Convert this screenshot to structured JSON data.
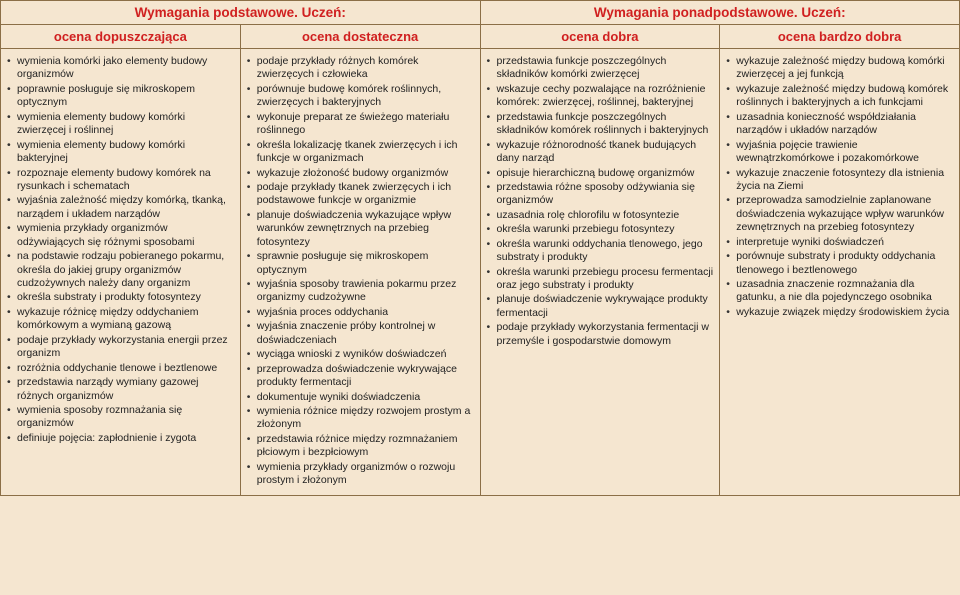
{
  "header1": {
    "left": "Wymagania podstawowe. Uczeń:",
    "right": "Wymagania ponadpodstawowe. Uczeń:"
  },
  "header2": {
    "c1": "ocena dopuszczająca",
    "c2": "ocena dostateczna",
    "c3": "ocena dobra",
    "c4": "ocena bardzo dobra"
  },
  "cols": {
    "c1": [
      "wymienia komórki jako elementy budowy organizmów",
      "poprawnie posługuje się mikroskopem optycznym",
      "wymienia elementy budowy komórki zwierzęcej i roślinnej",
      "wymienia elementy budowy komórki bakteryjnej",
      "rozpoznaje elementy budowy komórek na rysunkach i schematach",
      "wyjaśnia zależność między komórką, tkanką, narządem i układem narządów",
      "wymienia przykłady organizmów odżywiających się różnymi sposobami",
      "na podstawie rodzaju pobieranego pokarmu, określa do jakiej grupy organizmów cudzożywnych należy dany organizm",
      "określa substraty i produkty fotosyntezy",
      "wykazuje różnicę między oddychaniem komórkowym a wymianą gazową",
      "podaje przykłady wykorzystania energii przez organizm",
      "rozróżnia oddychanie tlenowe i beztlenowe",
      "przedstawia narządy wymiany gazowej różnych organizmów",
      "wymienia sposoby rozmnażania się organizmów",
      "definiuje pojęcia: zapłodnienie i zygota"
    ],
    "c2": [
      "podaje przykłady różnych komórek zwierzęcych i człowieka",
      "porównuje budowę komórek roślinnych, zwierzęcych i bakteryjnych",
      "wykonuje preparat ze świeżego materiału roślinnego",
      "określa lokalizację tkanek zwierzęcych i ich funkcje w organizmach",
      "wykazuje złożoność budowy organizmów",
      "podaje przykłady tkanek zwierzęcych i ich podstawowe funkcje w organizmie",
      "planuje doświadczenia wykazujące wpływ warunków zewnętrznych na przebieg fotosyntezy",
      "sprawnie posługuje się mikroskopem optycznym",
      "wyjaśnia sposoby trawienia pokarmu przez organizmy cudzożywne",
      "wyjaśnia proces oddychania",
      "wyjaśnia znaczenie próby kontrolnej w doświadczeniach",
      "wyciąga wnioski z wyników doświadczeń",
      "przeprowadza doświadczenie wykrywające produkty fermentacji",
      "dokumentuje wyniki doświadczenia",
      "wymienia różnice między rozwojem prostym a złożonym",
      "przedstawia różnice między rozmnażaniem płciowym i bezpłciowym",
      "wymienia przykłady organizmów o rozwoju prostym i złożonym"
    ],
    "c3": [
      "przedstawia funkcje poszczególnych składników komórki zwierzęcej",
      "wskazuje cechy pozwalające na rozróżnienie komórek: zwierzęcej, roślinnej, bakteryjnej",
      "przedstawia funkcje poszczególnych składników komórek roślinnych i bakteryjnych",
      "wykazuje różnorodność tkanek budujących dany narząd",
      "opisuje hierarchiczną budowę organizmów",
      "przedstawia różne sposoby odżywiania się organizmów",
      "uzasadnia rolę chlorofilu w fotosyntezie",
      "określa warunki przebiegu fotosyntezy",
      "określa warunki oddychania tlenowego, jego substraty i produkty",
      "określa warunki przebiegu procesu fermentacji oraz jego substraty i produkty",
      "planuje doświadczenie wykrywające produkty fermentacji",
      "podaje przykłady wykorzystania fermentacji w przemyśle i gospodarstwie domowym"
    ],
    "c4": [
      "wykazuje zależność między budową komórki zwierzęcej a jej funkcją",
      "wykazuje zależność między budową komórek roślinnych i bakteryjnych a ich funkcjami",
      "uzasadnia konieczność współdziałania narządów i układów narządów",
      "wyjaśnia pojęcie trawienie wewnątrzkomórkowe i pozakomórkowe",
      "wykazuje znaczenie fotosyntezy dla istnienia życia na Ziemi",
      "przeprowadza samodzielnie zaplanowane doświadczenia wykazujące wpływ warunków zewnętrznych na przebieg fotosyntezy",
      "interpretuje wyniki doświadczeń",
      "porównuje substraty i produkty oddychania tlenowego i beztlenowego",
      "uzasadnia znaczenie rozmnażania dla gatunku, a nie dla pojedynczego osobnika",
      "wykazuje związek między środowiskiem życia"
    ]
  },
  "style": {
    "bg": "#f5e6d0",
    "border": "#8b6f47",
    "headerText": "#d02020",
    "bodyText": "#222",
    "baseFontSize": 10.5,
    "h1FontSize": 13.5,
    "h2FontSize": 13
  }
}
